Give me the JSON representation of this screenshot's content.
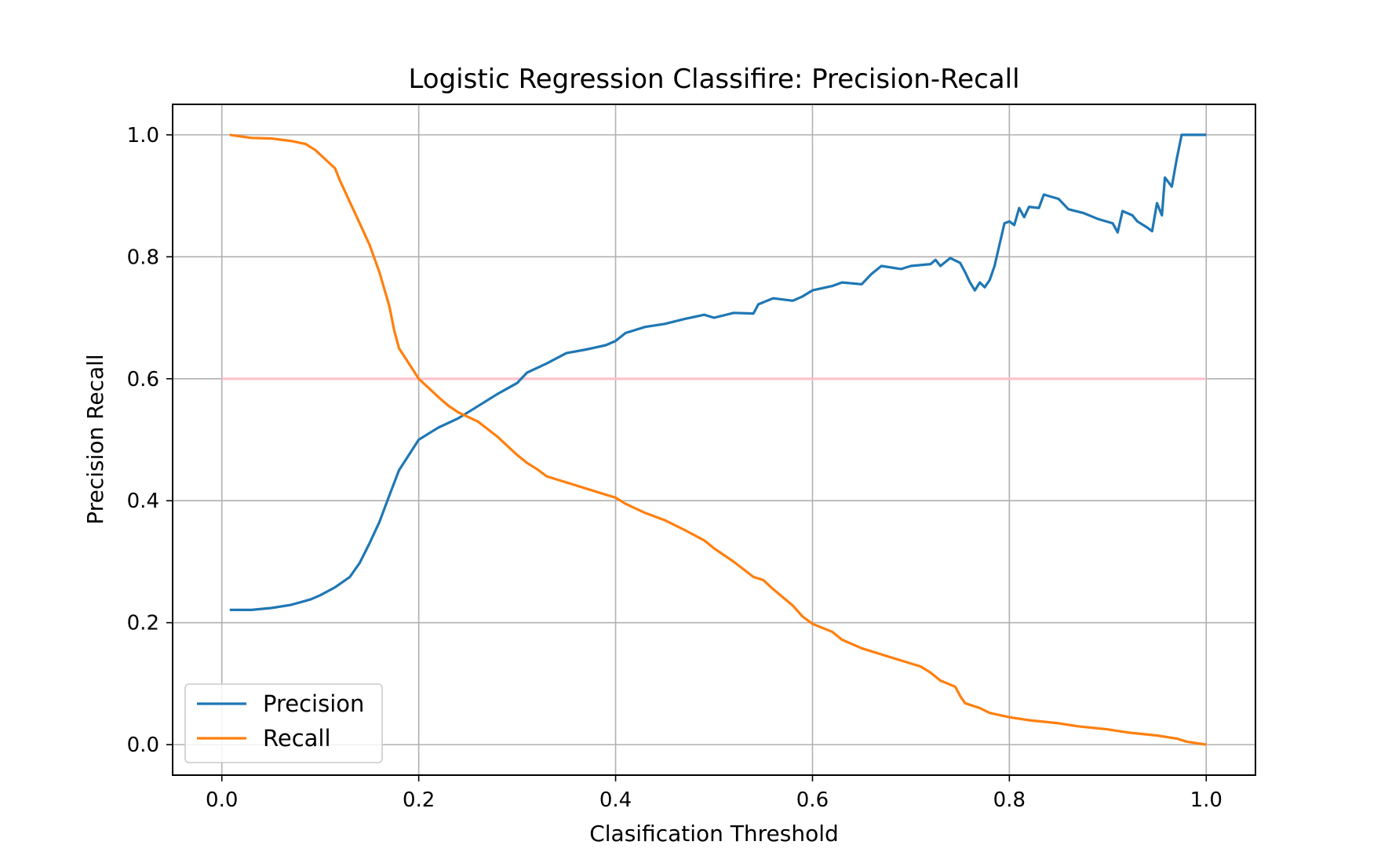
{
  "chart_data": {
    "type": "line",
    "title": "Logistic Regression Classifire: Precision-Recall",
    "xlabel": "Clasification Threshold",
    "ylabel": "Precision Recall",
    "xlim": [
      -0.05,
      1.05
    ],
    "ylim": [
      -0.05,
      1.05
    ],
    "xticks": [
      0.0,
      0.2,
      0.4,
      0.6,
      0.8,
      1.0
    ],
    "xtick_labels": [
      "0.0",
      "0.2",
      "0.4",
      "0.6",
      "0.8",
      "1.0"
    ],
    "yticks": [
      0.0,
      0.2,
      0.4,
      0.6,
      0.8,
      1.0
    ],
    "ytick_labels": [
      "0.0",
      "0.2",
      "0.4",
      "0.6",
      "0.8",
      "1.0"
    ],
    "grid": true,
    "legend_position": "lower-left",
    "series": [
      {
        "name": "Precision",
        "color": "#1f77b4",
        "points": [
          [
            0.008,
            0.221
          ],
          [
            0.03,
            0.221
          ],
          [
            0.05,
            0.224
          ],
          [
            0.07,
            0.229
          ],
          [
            0.09,
            0.238
          ],
          [
            0.1,
            0.245
          ],
          [
            0.115,
            0.258
          ],
          [
            0.13,
            0.275
          ],
          [
            0.14,
            0.298
          ],
          [
            0.15,
            0.33
          ],
          [
            0.16,
            0.365
          ],
          [
            0.17,
            0.408
          ],
          [
            0.18,
            0.45
          ],
          [
            0.19,
            0.475
          ],
          [
            0.2,
            0.5
          ],
          [
            0.21,
            0.51
          ],
          [
            0.22,
            0.52
          ],
          [
            0.24,
            0.535
          ],
          [
            0.26,
            0.555
          ],
          [
            0.28,
            0.575
          ],
          [
            0.3,
            0.593
          ],
          [
            0.31,
            0.61
          ],
          [
            0.33,
            0.625
          ],
          [
            0.35,
            0.642
          ],
          [
            0.37,
            0.648
          ],
          [
            0.39,
            0.655
          ],
          [
            0.4,
            0.662
          ],
          [
            0.41,
            0.675
          ],
          [
            0.43,
            0.685
          ],
          [
            0.45,
            0.69
          ],
          [
            0.47,
            0.698
          ],
          [
            0.49,
            0.705
          ],
          [
            0.5,
            0.7
          ],
          [
            0.52,
            0.708
          ],
          [
            0.54,
            0.707
          ],
          [
            0.545,
            0.722
          ],
          [
            0.56,
            0.732
          ],
          [
            0.58,
            0.728
          ],
          [
            0.59,
            0.735
          ],
          [
            0.6,
            0.745
          ],
          [
            0.62,
            0.752
          ],
          [
            0.63,
            0.758
          ],
          [
            0.65,
            0.755
          ],
          [
            0.66,
            0.772
          ],
          [
            0.67,
            0.785
          ],
          [
            0.69,
            0.78
          ],
          [
            0.7,
            0.785
          ],
          [
            0.72,
            0.788
          ],
          [
            0.725,
            0.795
          ],
          [
            0.73,
            0.785
          ],
          [
            0.74,
            0.798
          ],
          [
            0.75,
            0.79
          ],
          [
            0.755,
            0.775
          ],
          [
            0.76,
            0.758
          ],
          [
            0.765,
            0.745
          ],
          [
            0.77,
            0.758
          ],
          [
            0.775,
            0.75
          ],
          [
            0.78,
            0.762
          ],
          [
            0.785,
            0.785
          ],
          [
            0.79,
            0.82
          ],
          [
            0.795,
            0.855
          ],
          [
            0.8,
            0.858
          ],
          [
            0.805,
            0.852
          ],
          [
            0.81,
            0.88
          ],
          [
            0.815,
            0.865
          ],
          [
            0.82,
            0.882
          ],
          [
            0.83,
            0.88
          ],
          [
            0.835,
            0.902
          ],
          [
            0.85,
            0.895
          ],
          [
            0.86,
            0.878
          ],
          [
            0.875,
            0.872
          ],
          [
            0.89,
            0.862
          ],
          [
            0.905,
            0.855
          ],
          [
            0.91,
            0.84
          ],
          [
            0.915,
            0.875
          ],
          [
            0.925,
            0.868
          ],
          [
            0.93,
            0.858
          ],
          [
            0.94,
            0.848
          ],
          [
            0.945,
            0.842
          ],
          [
            0.95,
            0.888
          ],
          [
            0.955,
            0.868
          ],
          [
            0.958,
            0.93
          ],
          [
            0.965,
            0.915
          ],
          [
            0.97,
            0.96
          ],
          [
            0.975,
            1.0
          ],
          [
            1.0,
            1.0
          ]
        ]
      },
      {
        "name": "Recall",
        "color": "#ff7f0e",
        "points": [
          [
            0.008,
            1.0
          ],
          [
            0.03,
            0.995
          ],
          [
            0.05,
            0.994
          ],
          [
            0.07,
            0.99
          ],
          [
            0.085,
            0.985
          ],
          [
            0.095,
            0.975
          ],
          [
            0.105,
            0.96
          ],
          [
            0.115,
            0.945
          ],
          [
            0.12,
            0.925
          ],
          [
            0.13,
            0.89
          ],
          [
            0.14,
            0.855
          ],
          [
            0.15,
            0.82
          ],
          [
            0.16,
            0.775
          ],
          [
            0.17,
            0.72
          ],
          [
            0.175,
            0.68
          ],
          [
            0.18,
            0.65
          ],
          [
            0.19,
            0.625
          ],
          [
            0.2,
            0.6
          ],
          [
            0.21,
            0.585
          ],
          [
            0.22,
            0.57
          ],
          [
            0.23,
            0.556
          ],
          [
            0.24,
            0.545
          ],
          [
            0.26,
            0.53
          ],
          [
            0.28,
            0.505
          ],
          [
            0.29,
            0.49
          ],
          [
            0.3,
            0.475
          ],
          [
            0.31,
            0.462
          ],
          [
            0.32,
            0.452
          ],
          [
            0.33,
            0.44
          ],
          [
            0.35,
            0.43
          ],
          [
            0.37,
            0.42
          ],
          [
            0.39,
            0.41
          ],
          [
            0.4,
            0.405
          ],
          [
            0.41,
            0.395
          ],
          [
            0.43,
            0.38
          ],
          [
            0.45,
            0.368
          ],
          [
            0.47,
            0.352
          ],
          [
            0.49,
            0.335
          ],
          [
            0.5,
            0.322
          ],
          [
            0.52,
            0.3
          ],
          [
            0.54,
            0.275
          ],
          [
            0.55,
            0.27
          ],
          [
            0.56,
            0.255
          ],
          [
            0.58,
            0.228
          ],
          [
            0.59,
            0.21
          ],
          [
            0.6,
            0.198
          ],
          [
            0.62,
            0.185
          ],
          [
            0.63,
            0.172
          ],
          [
            0.65,
            0.158
          ],
          [
            0.67,
            0.148
          ],
          [
            0.69,
            0.138
          ],
          [
            0.71,
            0.128
          ],
          [
            0.72,
            0.118
          ],
          [
            0.73,
            0.105
          ],
          [
            0.745,
            0.095
          ],
          [
            0.75,
            0.08
          ],
          [
            0.755,
            0.068
          ],
          [
            0.77,
            0.06
          ],
          [
            0.78,
            0.052
          ],
          [
            0.8,
            0.045
          ],
          [
            0.82,
            0.04
          ],
          [
            0.85,
            0.035
          ],
          [
            0.87,
            0.03
          ],
          [
            0.9,
            0.025
          ],
          [
            0.92,
            0.02
          ],
          [
            0.95,
            0.015
          ],
          [
            0.97,
            0.01
          ],
          [
            0.98,
            0.005
          ],
          [
            1.0,
            0.0
          ]
        ]
      },
      {
        "name": "",
        "color": "#ffc0cb",
        "points": [
          [
            0.0,
            0.6
          ],
          [
            1.0,
            0.6
          ]
        ]
      }
    ]
  }
}
